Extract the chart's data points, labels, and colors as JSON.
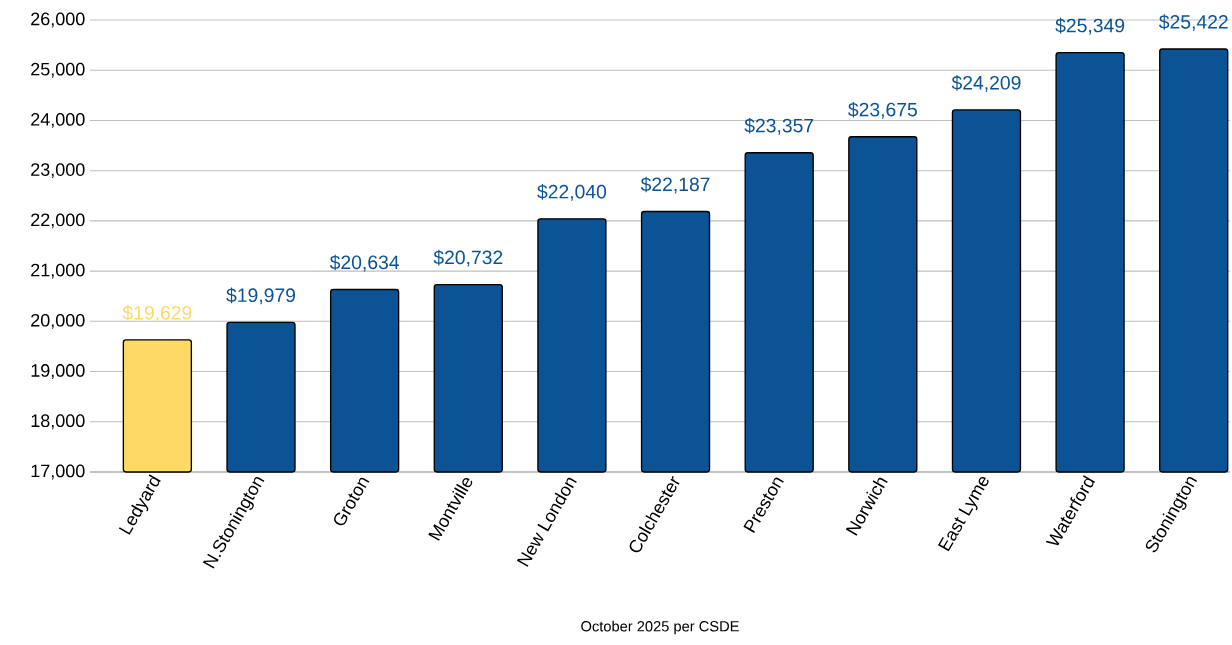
{
  "chart_data": {
    "type": "bar",
    "xlabel": "October 2025 per CSDE",
    "categories": [
      "Ledyard",
      "N.Stonington",
      "Groton",
      "Montville",
      "New London",
      "Colchester",
      "Preston",
      "Norwich",
      "East Lyme",
      "Waterford",
      "Stonington"
    ],
    "values": [
      19629,
      19979,
      20634,
      20732,
      22040,
      22187,
      23357,
      23675,
      24209,
      25349,
      25422
    ],
    "value_labels": [
      "$19,629",
      "$19,979",
      "$20,634",
      "$20,732",
      "$22,040",
      "$22,187",
      "$23,357",
      "$23,675",
      "$24,209",
      "$25,349",
      "$25,422"
    ],
    "colors": [
      "#ffd966",
      "#0b5394",
      "#0b5394",
      "#0b5394",
      "#0b5394",
      "#0b5394",
      "#0b5394",
      "#0b5394",
      "#0b5394",
      "#0b5394",
      "#0b5394"
    ],
    "ylim": [
      17000,
      26000
    ],
    "yticks": [
      {
        "value": 17000,
        "label": "17,000"
      },
      {
        "value": 18000,
        "label": "18,000"
      },
      {
        "value": 19000,
        "label": "19,000"
      },
      {
        "value": 20000,
        "label": "20,000"
      },
      {
        "value": 21000,
        "label": "21,000"
      },
      {
        "value": 22000,
        "label": "22,000"
      },
      {
        "value": 23000,
        "label": "23,000"
      },
      {
        "value": 24000,
        "label": "24,000"
      },
      {
        "value": 25000,
        "label": "25,000"
      },
      {
        "value": 26000,
        "label": "26,000"
      }
    ],
    "grid": "y"
  }
}
